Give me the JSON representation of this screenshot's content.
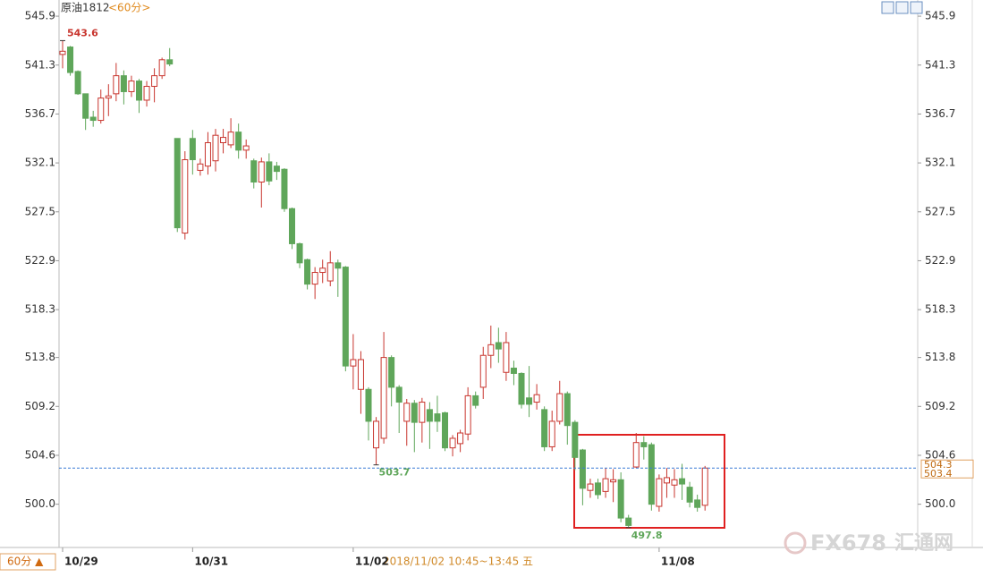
{
  "chart_data": {
    "type": "candlestick",
    "title": "原油1812",
    "subtitle": "<60分>",
    "categories": [
      "10/29",
      null,
      null,
      null,
      null,
      null,
      null,
      null,
      null,
      null,
      null,
      null,
      null,
      null,
      null,
      null,
      null,
      "10/31",
      null,
      null,
      null,
      null,
      null,
      null,
      null,
      null,
      null,
      null,
      null,
      null,
      null,
      null,
      null,
      null,
      null,
      null,
      null,
      null,
      "11/02",
      null,
      null,
      null,
      null,
      null,
      null,
      null,
      null,
      null,
      null,
      null,
      null,
      null,
      null,
      null,
      null,
      null,
      null,
      null,
      null,
      null,
      null,
      null,
      null,
      null,
      null,
      null,
      null,
      null,
      null,
      null,
      null,
      null,
      null,
      null,
      null,
      null,
      null,
      null,
      "11/08",
      null,
      null,
      null,
      null,
      null,
      null
    ],
    "open": [
      542.3,
      543.0,
      540.7,
      538.6,
      536.4,
      536.1,
      538.2,
      538.6,
      540.3,
      538.8,
      539.8,
      538.0,
      539.3,
      540.3,
      541.8,
      534.4,
      525.5,
      534.4,
      531.4,
      531.8,
      532.3,
      534.0,
      533.8,
      535.0,
      533.3,
      532.3,
      530.3,
      532.2,
      531.8,
      531.5,
      527.8,
      524.5,
      523.0,
      520.7,
      521.8,
      521.0,
      522.7,
      522.3,
      513.0,
      510.8,
      510.8,
      505.3,
      506.2,
      513.8,
      511.0,
      507.8,
      509.5,
      507.7,
      508.9,
      508.5,
      508.6,
      505.3,
      505.7,
      506.6,
      510.2,
      511.0,
      514.0,
      515.2,
      512.4,
      512.8,
      512.3,
      510.0,
      509.6,
      508.9,
      505.4,
      507.8,
      510.4,
      507.7,
      505.1,
      501.3,
      502.0,
      501.2,
      502.1,
      502.3,
      498.7,
      503.5,
      505.8,
      505.6,
      499.8,
      502.0,
      501.8,
      502.4,
      501.6,
      500.4,
      499.9
    ],
    "high": [
      543.6,
      543.1,
      540.8,
      538.6,
      537.0,
      539.0,
      539.5,
      541.5,
      540.8,
      540.3,
      540.0,
      539.8,
      541.0,
      542.0,
      542.9,
      534.4,
      533.2,
      535.2,
      532.5,
      535.0,
      535.3,
      535.3,
      536.3,
      535.8,
      534.3,
      532.5,
      532.6,
      533.0,
      532.2,
      531.6,
      527.9,
      524.6,
      523.1,
      522.3,
      523.0,
      523.8,
      523.0,
      522.4,
      516.0,
      514.4,
      511.0,
      508.2,
      516.2,
      514.0,
      511.2,
      509.9,
      509.8,
      510.0,
      509.6,
      510.2,
      508.7,
      506.5,
      507.0,
      511.0,
      510.6,
      514.8,
      516.8,
      516.6,
      516.2,
      513.5,
      512.4,
      513.0,
      511.3,
      509.2,
      508.8,
      511.6,
      510.6,
      507.9,
      505.2,
      502.4,
      502.4,
      503.4,
      503.3,
      503.0,
      499.0,
      506.7,
      506.4,
      505.8,
      502.8,
      503.4,
      503.3,
      503.8,
      502.1,
      500.9,
      503.6
    ],
    "low": [
      541.0,
      540.3,
      538.5,
      535.2,
      535.5,
      535.8,
      536.5,
      537.9,
      537.6,
      538.3,
      536.8,
      537.4,
      537.8,
      540.0,
      541.2,
      525.6,
      524.9,
      531.0,
      530.9,
      531.0,
      531.3,
      533.0,
      533.5,
      532.5,
      532.5,
      529.7,
      527.9,
      530.0,
      530.5,
      527.5,
      524.0,
      522.2,
      520.2,
      519.3,
      520.8,
      520.5,
      519.5,
      512.5,
      510.8,
      508.5,
      506.0,
      503.7,
      505.7,
      509.2,
      506.7,
      505.5,
      504.9,
      505.8,
      505.2,
      506.8,
      505.0,
      504.5,
      504.9,
      506.0,
      509.0,
      509.9,
      512.8,
      513.3,
      511.6,
      511.2,
      509.0,
      508.2,
      508.9,
      505.0,
      505.0,
      507.5,
      505.6,
      503.2,
      499.9,
      500.6,
      500.5,
      500.6,
      500.2,
      498.3,
      497.8,
      503.4,
      504.2,
      499.4,
      499.3,
      500.6,
      500.6,
      500.4,
      499.7,
      499.3,
      499.4
    ],
    "close": [
      542.6,
      540.6,
      538.6,
      536.3,
      536.1,
      538.2,
      538.4,
      540.3,
      538.8,
      539.8,
      538.0,
      539.3,
      540.3,
      541.8,
      541.4,
      526.0,
      532.4,
      532.4,
      532.0,
      534.0,
      534.7,
      534.5,
      535.0,
      533.3,
      533.7,
      530.3,
      532.2,
      530.4,
      531.3,
      527.8,
      524.5,
      522.7,
      520.7,
      521.8,
      522.2,
      522.7,
      522.2,
      513.0,
      513.6,
      513.6,
      507.8,
      507.8,
      513.8,
      511.0,
      509.6,
      509.5,
      507.7,
      509.6,
      507.8,
      507.8,
      505.3,
      506.2,
      506.7,
      510.2,
      509.3,
      514.0,
      515.0,
      514.6,
      515.2,
      512.3,
      509.4,
      509.4,
      510.3,
      505.4,
      507.8,
      510.4,
      507.4,
      504.4,
      501.5,
      501.9,
      500.9,
      502.4,
      502.3,
      498.7,
      498.0,
      505.8,
      505.4,
      500.0,
      502.4,
      502.5,
      502.3,
      501.9,
      500.2,
      499.7,
      503.4
    ],
    "up_color": "#c8352e",
    "down_color": "#5fa65a",
    "ylim": [
      496.1,
      547.0
    ],
    "yticks": [
      545.9,
      541.3,
      536.7,
      532.1,
      527.5,
      522.9,
      518.3,
      513.8,
      509.2,
      504.6,
      {
        "value": 500,
        "label": "500.0"
      }
    ],
    "max_label": 543.6,
    "min_labels": [
      503.7,
      497.8
    ],
    "price_labels": [
      504.3,
      503.4
    ],
    "period_button": "60分 ▲",
    "cursor_label": "2018/11/02 10:45~13:45 五",
    "watermark": [
      "FX678",
      "汇通网"
    ]
  }
}
